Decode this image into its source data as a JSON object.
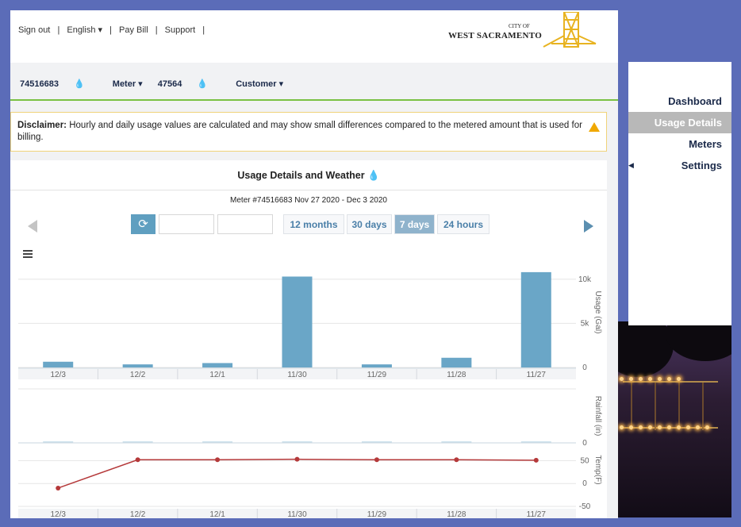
{
  "topbar": {
    "links": [
      "Sign out",
      "|",
      "English ▾",
      "|",
      "Pay Bill",
      "|",
      "Support",
      "|"
    ],
    "logo_small": "CITY OF",
    "logo_name": "WEST SACRAMENTO"
  },
  "infobar": {
    "meter_number": "74516683",
    "meter_label": "Meter ▾",
    "customer_number": "47564",
    "customer_label": "Customer ▾"
  },
  "disclaimer": {
    "label": "Disclaimer:",
    "text": "Hourly and daily usage values are calculated and may show small differences compared to the metered amount that is used for billing."
  },
  "panel": {
    "title": "Usage Details and Weather",
    "meter_line": "Meter #74516683   Nov 27 2020 - Dec 3 2020",
    "buttons": [
      "24 hours",
      "7 days",
      "30 days",
      "12 months"
    ],
    "active_button": "7 days"
  },
  "sidebar": {
    "items": [
      "Dashboard",
      "Usage Details",
      "Meters",
      "Settings"
    ],
    "active": "Usage Details"
  },
  "colors": {
    "bar": "#6aa6c7",
    "temp_line": "#b5393a",
    "accent_green": "#7ac143"
  },
  "chart_data": [
    {
      "type": "bar",
      "categories": [
        "11/27",
        "11/28",
        "11/29",
        "11/30",
        "12/1",
        "12/2",
        "12/3"
      ],
      "values": [
        10800,
        1100,
        350,
        10300,
        500,
        350,
        650
      ],
      "ylabel": "Usage (Gal)",
      "ytick_labels": [
        "0",
        "5k",
        "10k"
      ],
      "ylim": [
        0,
        12500
      ]
    },
    {
      "type": "bar",
      "categories": [
        "11/27",
        "11/28",
        "11/29",
        "11/30",
        "12/1",
        "12/2",
        "12/3"
      ],
      "values": [
        0,
        0,
        0,
        0,
        0,
        0,
        0
      ],
      "ylabel": "Rainfall (in)",
      "ytick_labels": [
        "0"
      ]
    },
    {
      "type": "line",
      "categories": [
        "11/27",
        "11/28",
        "11/29",
        "11/30",
        "12/1",
        "12/2",
        "12/3"
      ],
      "values": [
        51,
        52,
        52,
        53,
        52,
        52,
        -10
      ],
      "ylabel": "Temp(F)",
      "ytick_labels": [
        "-50",
        "0",
        "50"
      ],
      "ylim": [
        -50,
        75
      ]
    }
  ]
}
